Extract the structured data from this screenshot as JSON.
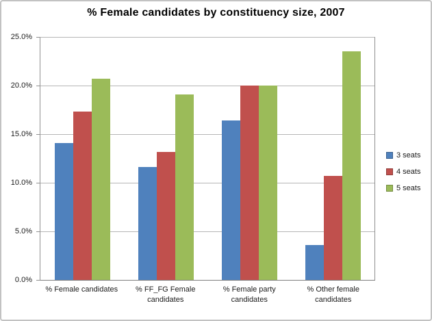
{
  "chart_data": {
    "type": "bar",
    "title": "% Female candidates by constituency size, 2007",
    "categories": [
      "% Female candidates",
      "% FF_FG Female candidates",
      "% Female party candidates",
      "% Other female candidates"
    ],
    "series": [
      {
        "name": "3 seats",
        "color": "#4f81bd",
        "values": [
          14.1,
          11.6,
          16.4,
          3.6
        ]
      },
      {
        "name": "4 seats",
        "color": "#c0504d",
        "values": [
          17.3,
          13.2,
          20.0,
          10.7
        ]
      },
      {
        "name": "5 seats",
        "color": "#9bbb59",
        "values": [
          20.7,
          19.1,
          20.0,
          23.5
        ]
      }
    ],
    "ylim": [
      0,
      25
    ],
    "ytick_step": 5,
    "ytick_labels": [
      "0.0%",
      "5.0%",
      "10.0%",
      "15.0%",
      "20.0%",
      "25.0%"
    ],
    "xlabel": "",
    "ylabel": "",
    "grid": true,
    "legend_position": "right"
  }
}
